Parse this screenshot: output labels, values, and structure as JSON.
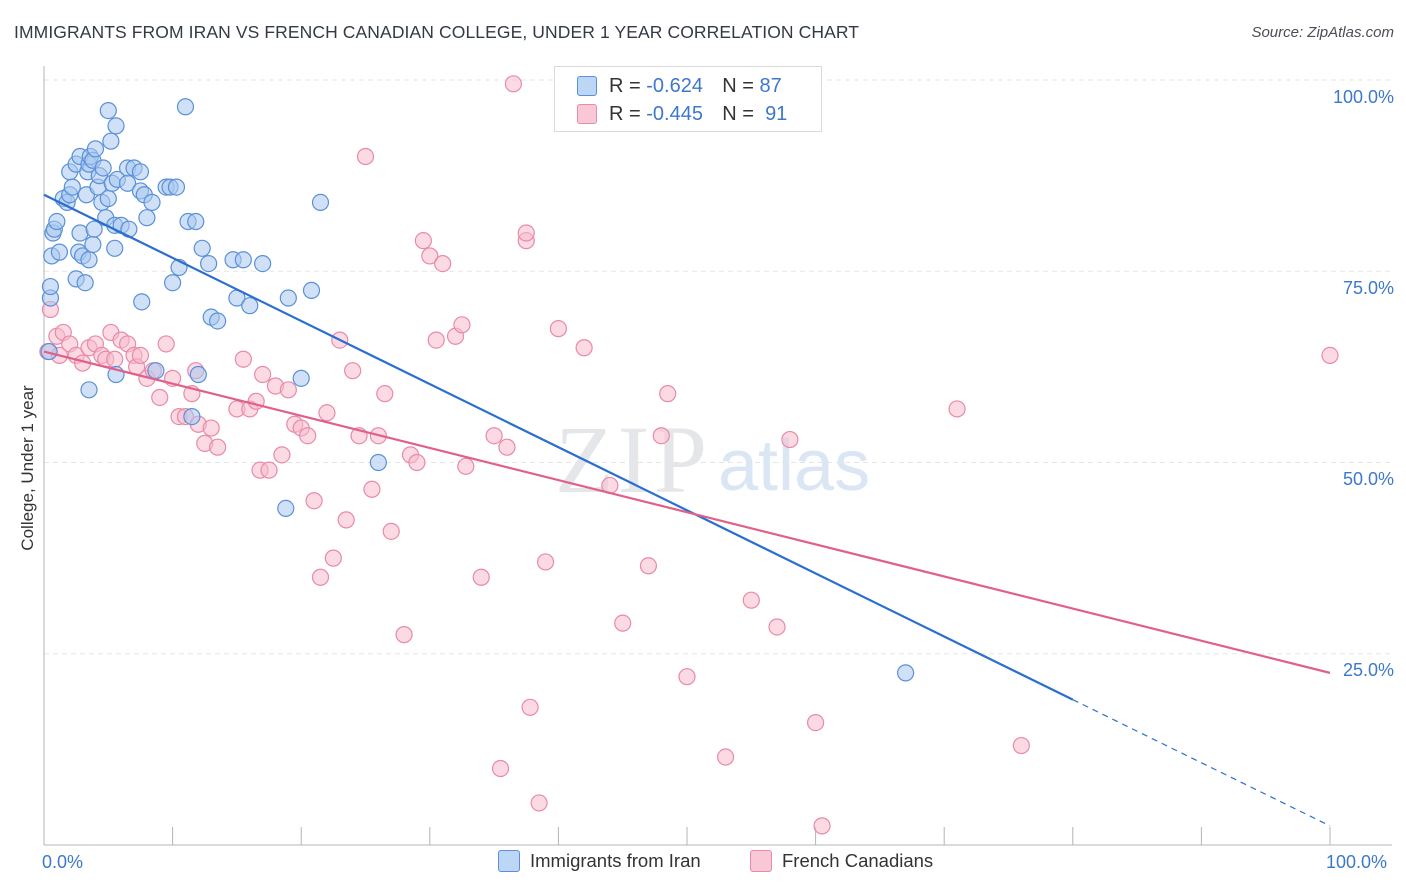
{
  "title": "IMMIGRANTS FROM IRAN VS FRENCH CANADIAN COLLEGE, UNDER 1 YEAR CORRELATION CHART",
  "source": "Source: ZipAtlas.com",
  "watermark": {
    "zip": "ZIP",
    "atlas": "atlas"
  },
  "legend": {
    "r_label": "R =",
    "n_label": "N =",
    "rows": [
      {
        "r": "-0.624",
        "n": "87"
      },
      {
        "r": "-0.445",
        "n": "91"
      }
    ]
  },
  "colors": {
    "iran_fill": "#a9c8f0",
    "iran_stroke": "#5a90d8",
    "iran_line": "#2a6fd0",
    "fc_fill": "#f7bccd",
    "fc_stroke": "#e88aa8",
    "fc_line": "#e0608a",
    "tick_color": "#3d78cc",
    "grid": "#e3e5e8"
  },
  "chart_data": {
    "type": "scatter",
    "title": "IMMIGRANTS FROM IRAN VS FRENCH CANADIAN COLLEGE, UNDER 1 YEAR CORRELATION CHART",
    "xlabel": "",
    "ylabel": "College, Under 1 year",
    "xlim": [
      0,
      100
    ],
    "ylim": [
      0,
      100
    ],
    "x_tick_labels": [
      "0.0%",
      "100.0%"
    ],
    "y_tick_labels": [
      "100.0%",
      "75.0%",
      "50.0%",
      "25.0%"
    ],
    "y_tick_values": [
      100,
      75,
      50,
      25
    ],
    "grid": true,
    "legend_position": "top-center",
    "series": [
      {
        "name": "Immigrants from Iran",
        "r": -0.624,
        "n": 87,
        "trend": {
          "x0": 0,
          "y0": 85,
          "x1": 80,
          "y1": 19,
          "dashed_to_x": 100,
          "dashed_to_y": 2.5
        },
        "points": [
          [
            0.4,
            64.5
          ],
          [
            0.5,
            71.5
          ],
          [
            0.5,
            73
          ],
          [
            0.6,
            77
          ],
          [
            0.7,
            80
          ],
          [
            0.8,
            80.5
          ],
          [
            1,
            81.5
          ],
          [
            1.2,
            77.5
          ],
          [
            1.5,
            84.5
          ],
          [
            1.8,
            84
          ],
          [
            2,
            85
          ],
          [
            2,
            88
          ],
          [
            2.2,
            86
          ],
          [
            2.5,
            89
          ],
          [
            2.5,
            74
          ],
          [
            2.7,
            77.5
          ],
          [
            2.8,
            80
          ],
          [
            2.8,
            90
          ],
          [
            3,
            77
          ],
          [
            3.2,
            73.5
          ],
          [
            3.3,
            85
          ],
          [
            3.4,
            88
          ],
          [
            3.5,
            59.5
          ],
          [
            3.5,
            76.5
          ],
          [
            3.5,
            89
          ],
          [
            3.6,
            90
          ],
          [
            3.8,
            78.5
          ],
          [
            3.8,
            89.5
          ],
          [
            3.9,
            80.5
          ],
          [
            4,
            91
          ],
          [
            4.2,
            86
          ],
          [
            4.3,
            87.5
          ],
          [
            4.5,
            84
          ],
          [
            4.6,
            88.5
          ],
          [
            4.8,
            82
          ],
          [
            5,
            96
          ],
          [
            5,
            84.5
          ],
          [
            5.2,
            92
          ],
          [
            5.3,
            86.5
          ],
          [
            5.5,
            81
          ],
          [
            5.5,
            78
          ],
          [
            5.6,
            61.5
          ],
          [
            5.6,
            94
          ],
          [
            5.7,
            87
          ],
          [
            6,
            81
          ],
          [
            6.5,
            86.5
          ],
          [
            6.5,
            88.5
          ],
          [
            6.6,
            80.5
          ],
          [
            7,
            88.5
          ],
          [
            7.5,
            88
          ],
          [
            7.5,
            85.5
          ],
          [
            7.6,
            71
          ],
          [
            7.8,
            85
          ],
          [
            8,
            82
          ],
          [
            8.4,
            84
          ],
          [
            8.7,
            62
          ],
          [
            9.5,
            86
          ],
          [
            9.8,
            86
          ],
          [
            10,
            73.5
          ],
          [
            10.3,
            86
          ],
          [
            10.5,
            75.5
          ],
          [
            11,
            96.5
          ],
          [
            11.2,
            81.5
          ],
          [
            11.5,
            56
          ],
          [
            11.8,
            81.5
          ],
          [
            12,
            61.5
          ],
          [
            12.3,
            78
          ],
          [
            12.8,
            76
          ],
          [
            13,
            69
          ],
          [
            13.5,
            68.5
          ],
          [
            14.7,
            76.5
          ],
          [
            15,
            71.5
          ],
          [
            15.5,
            76.5
          ],
          [
            16,
            70.5
          ],
          [
            17,
            76
          ],
          [
            18.8,
            44
          ],
          [
            19,
            71.5
          ],
          [
            20,
            61
          ],
          [
            20.8,
            72.5
          ],
          [
            21.5,
            84
          ],
          [
            26,
            50
          ],
          [
            67,
            22.5
          ]
        ]
      },
      {
        "name": "French Canadians",
        "r": -0.445,
        "n": 91,
        "trend": {
          "x0": 0,
          "y0": 64.5,
          "x1": 100,
          "y1": 22.5
        },
        "points": [
          [
            0.3,
            64.5
          ],
          [
            0.5,
            70
          ],
          [
            1,
            66.5
          ],
          [
            1.2,
            64
          ],
          [
            1.5,
            67
          ],
          [
            2,
            65.5
          ],
          [
            2.5,
            64
          ],
          [
            3,
            63
          ],
          [
            3.5,
            65
          ],
          [
            4,
            65.5
          ],
          [
            4.5,
            64
          ],
          [
            4.8,
            63.5
          ],
          [
            5.2,
            67
          ],
          [
            5.5,
            63.5
          ],
          [
            6,
            66
          ],
          [
            6.5,
            65.5
          ],
          [
            7,
            64
          ],
          [
            7.2,
            62.5
          ],
          [
            7.5,
            64
          ],
          [
            8,
            61
          ],
          [
            8.5,
            62
          ],
          [
            9,
            58.5
          ],
          [
            9.5,
            65.5
          ],
          [
            10,
            61
          ],
          [
            10.5,
            56
          ],
          [
            11,
            56
          ],
          [
            11.5,
            59
          ],
          [
            11.8,
            62
          ],
          [
            12,
            55
          ],
          [
            12.5,
            52.5
          ],
          [
            13,
            54.5
          ],
          [
            13.5,
            52
          ],
          [
            15,
            57
          ],
          [
            15.5,
            63.5
          ],
          [
            16,
            57
          ],
          [
            16.5,
            58
          ],
          [
            16.8,
            49
          ],
          [
            17,
            61.5
          ],
          [
            17.5,
            49
          ],
          [
            18,
            60
          ],
          [
            18.5,
            51
          ],
          [
            19,
            59.5
          ],
          [
            19.5,
            55
          ],
          [
            20,
            54.5
          ],
          [
            20.5,
            53.5
          ],
          [
            21,
            45
          ],
          [
            21.5,
            35
          ],
          [
            22,
            56.5
          ],
          [
            22.5,
            37.5
          ],
          [
            23,
            66
          ],
          [
            23.5,
            42.5
          ],
          [
            24,
            62
          ],
          [
            24.5,
            53.5
          ],
          [
            25,
            90
          ],
          [
            25.5,
            46.5
          ],
          [
            26,
            53.5
          ],
          [
            26.5,
            59
          ],
          [
            27,
            41
          ],
          [
            28,
            27.5
          ],
          [
            28.5,
            51
          ],
          [
            29,
            50
          ],
          [
            29.5,
            79
          ],
          [
            30,
            77
          ],
          [
            30.5,
            66
          ],
          [
            31,
            76
          ],
          [
            32,
            66.5
          ],
          [
            32.5,
            68
          ],
          [
            32.8,
            49.5
          ],
          [
            34,
            35
          ],
          [
            35,
            53.5
          ],
          [
            35.5,
            10
          ],
          [
            36,
            52
          ],
          [
            36.5,
            99.5
          ],
          [
            37.5,
            79
          ],
          [
            37.5,
            80
          ],
          [
            37.8,
            18
          ],
          [
            38.5,
            5.5
          ],
          [
            39,
            37
          ],
          [
            40,
            67.5
          ],
          [
            42,
            65
          ],
          [
            44,
            47
          ],
          [
            45,
            29
          ],
          [
            47,
            36.5
          ],
          [
            48,
            53.5
          ],
          [
            48.5,
            59
          ],
          [
            50,
            22
          ],
          [
            53,
            11.5
          ],
          [
            55,
            32
          ],
          [
            57,
            28.5
          ],
          [
            58,
            53
          ],
          [
            60,
            16
          ],
          [
            60.5,
            2.5
          ],
          [
            71,
            57
          ],
          [
            76,
            13
          ],
          [
            100,
            64
          ]
        ]
      }
    ]
  },
  "bottom_legend": [
    "Immigrants from Iran",
    "French Canadians"
  ]
}
